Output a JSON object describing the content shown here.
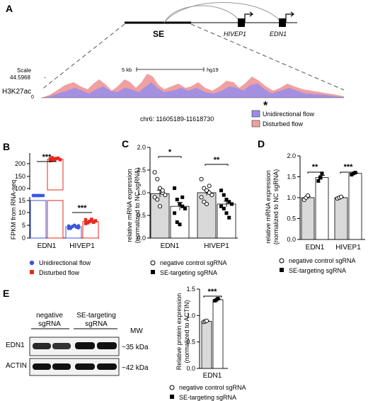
{
  "panel_letters": {
    "a": "A",
    "b": "B",
    "c": "C",
    "d": "D",
    "e": "E"
  },
  "colors": {
    "unidirectional": "#3a56e0",
    "unidirectional_track": "#9a8ee8",
    "disturbed": "#e8271b",
    "disturbed_track": "#f0a0a0",
    "bar_gray": "#d9d9d9"
  },
  "panel_a": {
    "se_label": "SE",
    "gene_hivep1": "HIVEP1",
    "gene_edn1": "EDN1",
    "scale_label": "Scale",
    "scale_value": "44.5968",
    "scale_dash": "-",
    "scalebar_label": "5 kb",
    "assembly": "hg19",
    "track_label": "H3K27ac",
    "track_zero": "0",
    "asterisk": "*",
    "coords": "chr6: 11605189-11618730",
    "legend": [
      "Unidirectional flow",
      "Disturbed flow"
    ]
  },
  "panel_b": {
    "ylabel": "FPKM from RNA-seq",
    "yticks_upper": [
      "200",
      "150",
      "100"
    ],
    "yticks_lower": [
      "15",
      "10",
      "5",
      "0"
    ],
    "categories": [
      "EDN1",
      "HIVEP1"
    ],
    "sig": [
      "***",
      "***"
    ],
    "legend": [
      "Unidirectional flow",
      "Disturbed flow"
    ]
  },
  "panel_c": {
    "ylabel_1": "relative mRNA expression",
    "ylabel_2": "(normalized to NC sgRNA)",
    "yticks": [
      "0.0",
      "0.5",
      "1.0",
      "1.5",
      "2.0"
    ],
    "categories": [
      "EDN1",
      "HIVEP1"
    ],
    "sig": [
      "*",
      "**"
    ],
    "legend": [
      "negative control sgRNA",
      "SE-targeting sgRNA"
    ]
  },
  "panel_d": {
    "ylabel_1": "relative mRNA expression",
    "ylabel_2": "(normalized to NC sgRNA)",
    "yticks": [
      "0.0",
      "0.5",
      "1.0",
      "1.5",
      "2.0"
    ],
    "categories": [
      "EDN1",
      "HIVEP1"
    ],
    "sig": [
      "**",
      "***"
    ],
    "legend": [
      "negative control sgRNA",
      "SE-targeting sgRNA"
    ]
  },
  "panel_e": {
    "group_nc_1": "negative",
    "group_nc_2": "sgRNA",
    "group_se_1": "SE-targeting",
    "group_se_2": "sgRNA",
    "mw_label": "MW",
    "rows": [
      {
        "name": "EDN1",
        "mw": "~35 kDa"
      },
      {
        "name": "ACTIN",
        "mw": "~42 kDa"
      }
    ],
    "ylabel_1": "Relative protein expression",
    "ylabel_2": "(normalized to ACTIN)",
    "yticks": [
      "0.0",
      "0.5",
      "1.0",
      "1.5"
    ],
    "category": "EDN1",
    "sig": "***",
    "legend": [
      "negative control sgRNA",
      "SE-targeting sgRNA"
    ]
  },
  "chart_data": [
    {
      "type": "bar",
      "panel": "B",
      "categories": [
        "EDN1",
        "HIVEP1"
      ],
      "series": [
        {
          "name": "Unidirectional flow",
          "values": [
            73,
            4.5
          ],
          "points": [
            [
              71,
              72,
              73,
              74,
              75,
              72,
              73,
              74,
              71,
              75
            ],
            [
              3.8,
              4.2,
              4.6,
              5.0,
              4.4,
              4.1,
              4.8,
              3.9,
              4.7,
              5.1,
              4.3,
              4.9
            ]
          ]
        },
        {
          "name": "Disturbed flow",
          "values": [
            218,
            6.6
          ],
          "points": [
            [
              212,
              215,
              218,
              220,
              222,
              216,
              219,
              224,
              214,
              221
            ],
            [
              5.8,
              6.2,
              6.6,
              7.0,
              6.4,
              6.9,
              7.3,
              6.1,
              6.7,
              7.5,
              6.3,
              6.8
            ]
          ]
        }
      ],
      "ylabel": "FPKM from RNA-seq",
      "y_axis_break": [
        15,
        100
      ],
      "ylim": [
        0,
        250
      ]
    },
    {
      "type": "bar",
      "panel": "C",
      "categories": [
        "EDN1",
        "HIVEP1"
      ],
      "series": [
        {
          "name": "negative control sgRNA",
          "values": [
            0.98,
            1.0
          ],
          "points": [
            [
              1.45,
              1.3,
              1.1,
              1.0,
              0.95,
              0.9,
              0.85,
              0.7,
              1.05
            ],
            [
              1.3,
              1.1,
              1.05,
              1.0,
              0.95,
              0.9,
              0.8,
              0.75,
              1.15
            ]
          ]
        },
        {
          "name": "SE-targeting sgRNA",
          "values": [
            0.7,
            0.75
          ],
          "points": [
            [
              1.1,
              0.85,
              0.75,
              0.7,
              0.65,
              0.55,
              0.35,
              0.3,
              0.9
            ],
            [
              1.05,
              0.95,
              0.85,
              0.8,
              0.75,
              0.7,
              0.65,
              0.55,
              0.45
            ]
          ]
        }
      ],
      "ylabel": "relative mRNA expression (normalized to NC sgRNA)",
      "ylim": [
        0,
        2.0
      ]
    },
    {
      "type": "bar",
      "panel": "D",
      "categories": [
        "EDN1",
        "HIVEP1"
      ],
      "series": [
        {
          "name": "negative control sgRNA",
          "values": [
            1.0,
            1.0
          ],
          "points": [
            [
              0.95,
              1.0,
              1.05
            ],
            [
              0.98,
              1.0,
              1.02
            ]
          ]
        },
        {
          "name": "SE-targeting sgRNA",
          "values": [
            1.48,
            1.58
          ],
          "points": [
            [
              1.4,
              1.48,
              1.58
            ],
            [
              1.55,
              1.58,
              1.6
            ]
          ]
        }
      ],
      "ylabel": "relative mRNA expression (normalized to NC sgRNA)",
      "ylim": [
        0,
        2.0
      ]
    },
    {
      "type": "bar",
      "panel": "E",
      "categories": [
        "EDN1"
      ],
      "series": [
        {
          "name": "negative control sgRNA",
          "values": [
            0.89
          ],
          "points": [
            [
              0.88,
              0.89,
              0.9
            ]
          ]
        },
        {
          "name": "SE-targeting sgRNA",
          "values": [
            1.3
          ],
          "points": [
            [
              1.28,
              1.3,
              1.32
            ]
          ]
        }
      ],
      "ylabel": "Relative protein expression (normalized to ACTIN)",
      "ylim": [
        0,
        1.5
      ]
    }
  ]
}
